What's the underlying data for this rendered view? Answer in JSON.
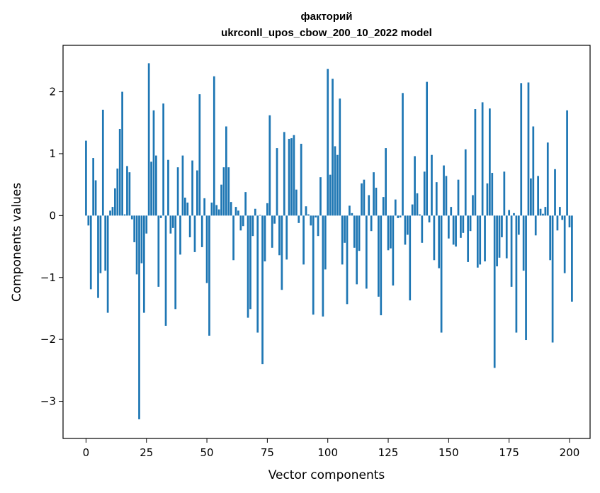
{
  "chart_data": {
    "type": "bar",
    "title_line1": "факторий",
    "title_line2": "ukrconll_upos_cbow_200_10_2022 model",
    "xlabel": "Vector components",
    "ylabel": "Components values",
    "xlim": [
      -9.5,
      208.5
    ],
    "ylim": [
      -3.6,
      2.75
    ],
    "xticks": [
      0,
      25,
      50,
      75,
      100,
      125,
      150,
      175,
      200
    ],
    "xtick_labels": [
      "0",
      "25",
      "50",
      "75",
      "100",
      "125",
      "150",
      "175",
      "200"
    ],
    "yticks": [
      -3,
      -2,
      -1,
      0,
      1,
      2
    ],
    "ytick_labels": [
      "−3",
      "−2",
      "−1",
      "0",
      "1",
      "2"
    ],
    "bar_color": "#1f77b4",
    "grid": false,
    "values": [
      1.21,
      -0.16,
      -1.19,
      0.93,
      0.57,
      -1.33,
      -0.93,
      1.71,
      -0.89,
      -1.57,
      0.08,
      0.14,
      0.44,
      0.76,
      1.4,
      2.0,
      0.02,
      0.8,
      0.7,
      -0.06,
      -0.43,
      -0.95,
      -3.29,
      -0.77,
      -1.57,
      -0.29,
      2.46,
      0.87,
      1.7,
      0.97,
      -1.15,
      -0.04,
      1.81,
      -1.78,
      0.9,
      -0.29,
      -0.2,
      -1.51,
      0.78,
      -0.63,
      0.97,
      0.29,
      0.21,
      -0.35,
      0.89,
      -0.59,
      0.73,
      1.96,
      -0.51,
      0.28,
      -1.09,
      -1.94,
      0.21,
      2.25,
      0.17,
      0.1,
      0.5,
      0.78,
      1.44,
      0.78,
      0.22,
      -0.72,
      0.14,
      0.08,
      -0.24,
      -0.17,
      0.38,
      -1.65,
      -1.51,
      -0.33,
      0.11,
      -1.89,
      0.01,
      -2.4,
      -0.74,
      0.2,
      1.62,
      -0.52,
      -0.13,
      1.09,
      -0.64,
      -1.2,
      1.35,
      -0.71,
      1.24,
      1.25,
      1.3,
      0.42,
      -0.12,
      1.16,
      -0.79,
      0.15,
      0.02,
      -0.16,
      -1.6,
      -0.03,
      -0.33,
      0.62,
      -1.63,
      -0.87,
      2.37,
      0.66,
      2.21,
      1.12,
      0.98,
      1.89,
      -0.79,
      -0.44,
      -1.43,
      0.16,
      0.04,
      -0.52,
      -1.11,
      -0.57,
      0.52,
      0.58,
      -1.18,
      0.33,
      -0.25,
      0.7,
      0.45,
      -1.31,
      -1.61,
      0.3,
      1.09,
      -0.56,
      -0.53,
      -1.13,
      0.26,
      -0.04,
      -0.03,
      1.98,
      -0.47,
      -0.31,
      -1.37,
      0.18,
      0.96,
      0.36,
      0.02,
      -0.44,
      0.71,
      2.16,
      -0.11,
      0.98,
      -0.72,
      0.54,
      -0.85,
      -1.89,
      0.81,
      0.64,
      -0.37,
      0.14,
      -0.47,
      -0.5,
      0.58,
      -0.36,
      -0.28,
      1.07,
      -0.75,
      -0.25,
      0.33,
      1.72,
      -0.84,
      -0.79,
      1.83,
      -0.74,
      0.52,
      1.73,
      0.69,
      -2.46,
      -0.82,
      -0.68,
      -0.35,
      0.71,
      -0.69,
      0.09,
      -1.15,
      0.04,
      -1.89,
      -0.31,
      2.14,
      -0.89,
      -2.01,
      2.15,
      0.6,
      1.44,
      -0.32,
      0.64,
      0.11,
      0.03,
      0.14,
      1.18,
      -0.72,
      -2.05,
      0.75,
      -0.24,
      0.14,
      -0.07,
      -0.93,
      1.7,
      -0.19,
      -1.39
    ]
  }
}
